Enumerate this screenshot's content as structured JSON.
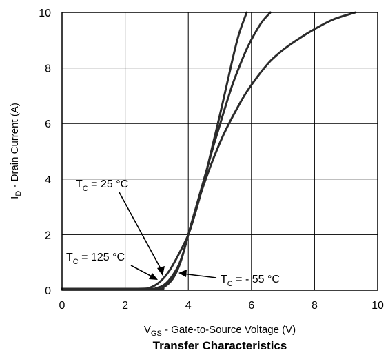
{
  "chart_data": {
    "type": "line",
    "title": "Transfer Characteristics",
    "xlabel": {
      "base": "V",
      "sub": "GS",
      "rest": " - Gate-to-Source Voltage (V)"
    },
    "ylabel": {
      "base": "I",
      "sub": "D",
      "rest": " - Drain Current (A)"
    },
    "xlim": [
      0,
      10
    ],
    "ylim": [
      0,
      10
    ],
    "xticks": [
      0,
      2,
      4,
      6,
      8,
      10
    ],
    "yticks": [
      0,
      2,
      4,
      6,
      8,
      10
    ],
    "grid": true,
    "series": [
      {
        "name": "TC = 25 °C",
        "x": [
          0,
          2.6,
          3.0,
          3.3,
          3.6,
          3.8,
          4.0,
          4.2,
          4.4,
          4.6,
          4.8,
          5.0,
          5.2,
          5.4,
          5.6,
          5.9,
          6.3,
          6.6
        ],
        "y": [
          0.05,
          0.05,
          0.08,
          0.25,
          0.7,
          1.2,
          2.0,
          2.8,
          3.6,
          4.4,
          5.2,
          5.95,
          6.7,
          7.4,
          8.0,
          8.8,
          9.6,
          10.0
        ]
      },
      {
        "name": "TC = 125 °C",
        "x": [
          0,
          2.4,
          2.8,
          3.1,
          3.4,
          3.7,
          4.0,
          4.2,
          4.4,
          4.6,
          4.8,
          5.0,
          5.2,
          5.4,
          5.6,
          5.85
        ],
        "y": [
          0.05,
          0.05,
          0.1,
          0.3,
          0.7,
          1.3,
          2.0,
          2.7,
          3.5,
          4.4,
          5.35,
          6.3,
          7.3,
          8.3,
          9.2,
          10.0
        ]
      },
      {
        "name": "TC = - 55 °C",
        "x": [
          0,
          2.9,
          3.2,
          3.5,
          3.75,
          4.0,
          4.2,
          4.4,
          4.6,
          4.8,
          5.0,
          5.2,
          5.5,
          5.8,
          6.2,
          6.6,
          7.0,
          7.5,
          8.0,
          8.6,
          9.3
        ],
        "y": [
          0.05,
          0.05,
          0.1,
          0.4,
          1.0,
          2.0,
          2.8,
          3.5,
          4.15,
          4.75,
          5.3,
          5.8,
          6.45,
          7.05,
          7.7,
          8.25,
          8.65,
          9.05,
          9.4,
          9.75,
          10.0
        ]
      }
    ],
    "annotations": [
      {
        "base": "T",
        "sub": "C",
        "rest": " = 25 °C",
        "series": 0
      },
      {
        "base": "T",
        "sub": "C",
        "rest": " = 125 °C",
        "series": 1
      },
      {
        "base": "T",
        "sub": "C",
        "rest": " = - 55 °C",
        "series": 2
      }
    ],
    "colors": {
      "line": "#2b2b2b",
      "grid": "#000000"
    }
  }
}
